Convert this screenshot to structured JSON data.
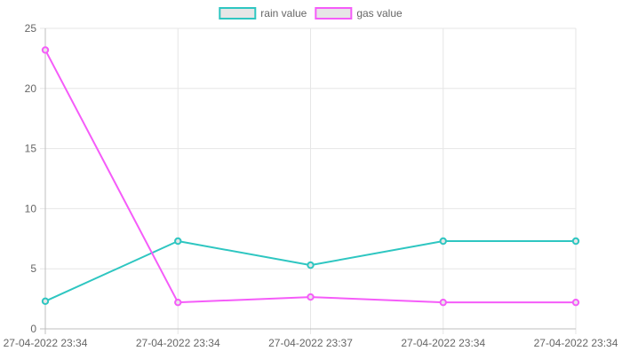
{
  "chart_data": {
    "type": "line",
    "categories": [
      "27-04-2022 23:34",
      "27-04-2022 23:34",
      "27-04-2022 23:37",
      "27-04-2022 23:34",
      "27-04-2022 23:34"
    ],
    "series": [
      {
        "name": "rain value",
        "values": [
          2.3,
          7.3,
          5.3,
          7.3,
          7.3
        ],
        "color": "#2ec6c1",
        "fill": "#e6e6e6"
      },
      {
        "name": "gas value",
        "values": [
          23.2,
          2.2,
          2.65,
          2.2,
          2.2
        ],
        "color": "#f55cf9",
        "fill": "#e6e6e6"
      }
    ],
    "ylim": [
      0,
      25
    ],
    "yticks": [
      0,
      5,
      10,
      15,
      20,
      25
    ],
    "grid": true,
    "legend_position": "top-center",
    "title": "",
    "xlabel": "",
    "ylabel": ""
  }
}
